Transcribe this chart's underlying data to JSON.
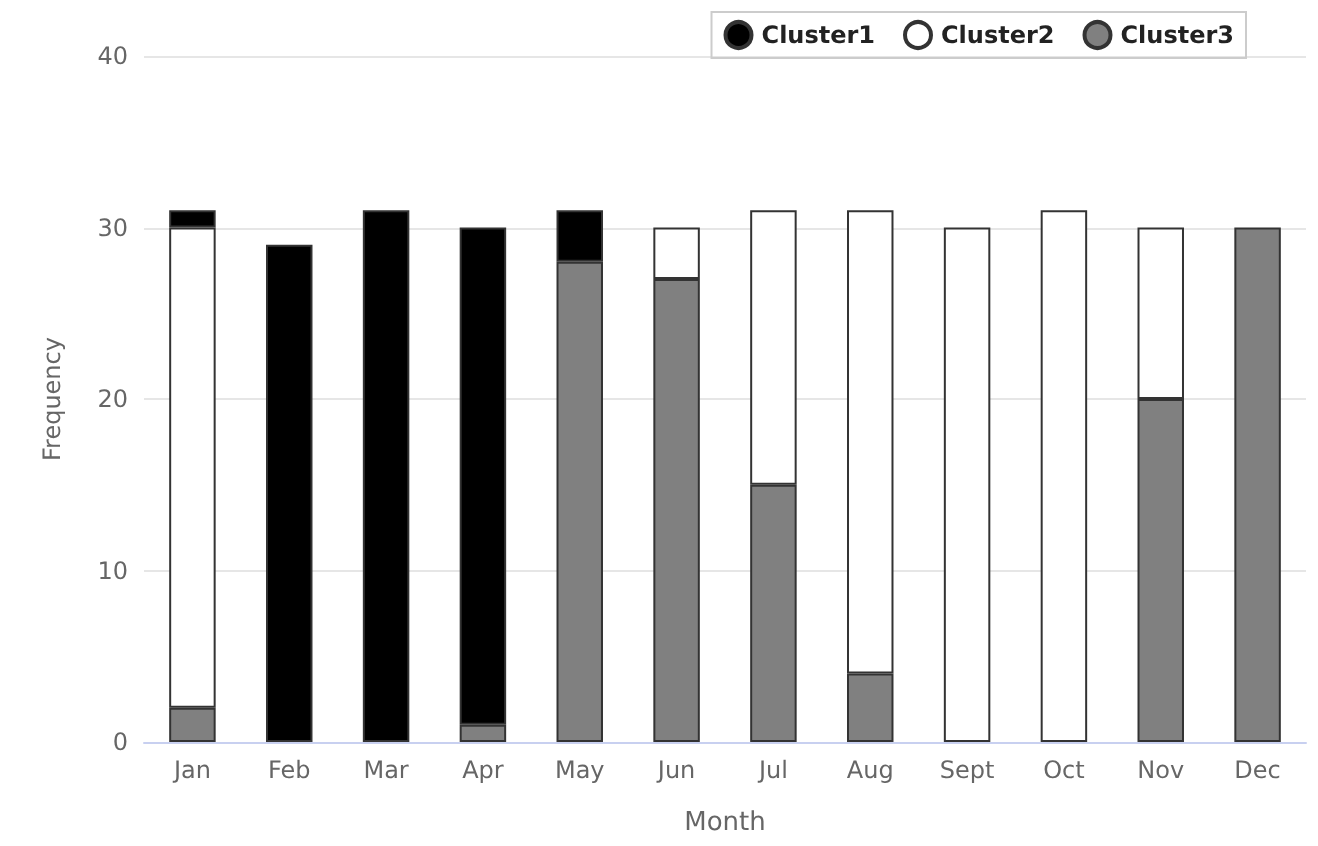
{
  "chart_data": {
    "type": "bar",
    "xlabel": "Month",
    "ylabel": "Frequency",
    "categories": [
      "Jan",
      "Feb",
      "Mar",
      "Apr",
      "May",
      "Jun",
      "Jul",
      "Aug",
      "Sept",
      "Oct",
      "Nov",
      "Dec"
    ],
    "stacked": true,
    "series": [
      {
        "name": "Cluster3",
        "color": "#808080",
        "values": [
          2,
          0,
          0,
          1,
          28,
          27,
          15,
          4,
          0,
          0,
          20,
          30
        ]
      },
      {
        "name": "Cluster2",
        "color": "#ffffff",
        "values": [
          28,
          0,
          0,
          0,
          0,
          3,
          16,
          27,
          30,
          31,
          10,
          0
        ]
      },
      {
        "name": "Cluster1",
        "color": "#000000",
        "values": [
          1,
          29,
          31,
          29,
          3,
          0,
          0,
          0,
          0,
          0,
          0,
          0
        ]
      }
    ],
    "ylim": [
      0,
      40
    ],
    "yticks": [
      0,
      10,
      20,
      30,
      40
    ],
    "grid": "y",
    "legend": "top right"
  }
}
